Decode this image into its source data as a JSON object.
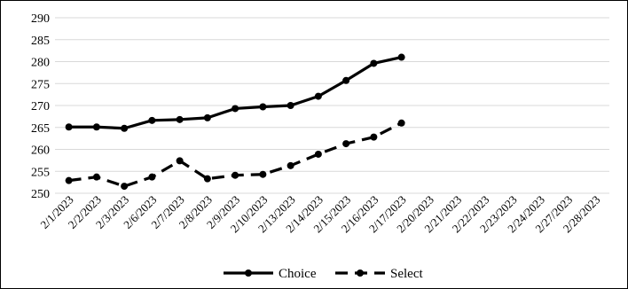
{
  "chart_data": {
    "type": "line",
    "title": "",
    "xlabel": "",
    "ylabel": "",
    "ylim": [
      250,
      290
    ],
    "yticks": [
      250,
      255,
      260,
      265,
      270,
      275,
      280,
      285,
      290
    ],
    "grid": "horizontal",
    "legend": "bottom-center",
    "categories": [
      "2/1/2023",
      "2/2/2023",
      "2/3/2023",
      "2/6/2023",
      "2/7/2023",
      "2/8/2023",
      "2/9/2023",
      "2/10/2023",
      "2/13/2023",
      "2/14/2023",
      "2/15/2023",
      "2/16/2023",
      "2/17/2023",
      "2/20/2023",
      "2/21/2023",
      "2/22/2023",
      "2/23/2023",
      "2/24/2023",
      "2/27/2023",
      "2/28/2023"
    ],
    "series": [
      {
        "name": "Choice",
        "style": "solid",
        "color": "#000000",
        "values": [
          265.1,
          265.1,
          264.8,
          266.6,
          266.8,
          267.2,
          269.3,
          269.7,
          270.0,
          272.1,
          275.7,
          279.6,
          281.0,
          null,
          null,
          null,
          null,
          null,
          null,
          null
        ]
      },
      {
        "name": "Select",
        "style": "dashed",
        "color": "#000000",
        "values": [
          252.9,
          253.7,
          251.6,
          253.7,
          257.4,
          253.3,
          254.1,
          254.3,
          256.3,
          258.9,
          261.3,
          262.8,
          266.0,
          null,
          null,
          null,
          null,
          null,
          null,
          null
        ]
      }
    ]
  }
}
